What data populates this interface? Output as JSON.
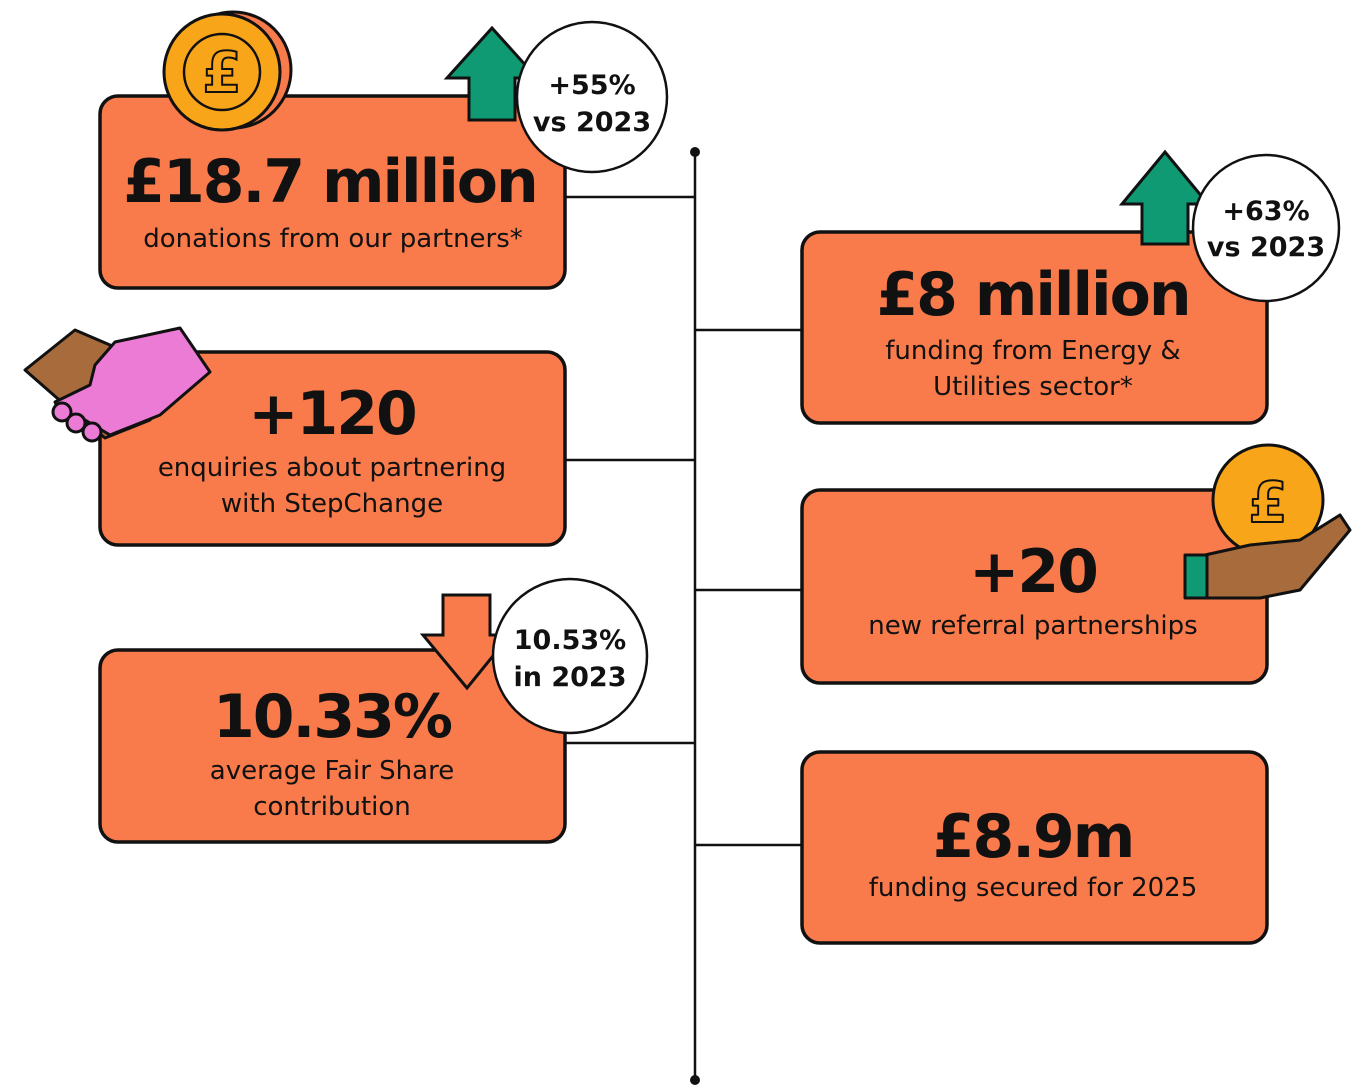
{
  "cards": [
    {
      "headline": "£18.7 million",
      "description": [
        "donations from our partners*"
      ],
      "badge": [
        "+55%",
        "vs 2023"
      ]
    },
    {
      "headline": "+120",
      "description": [
        "enquiries about partnering",
        "with StepChange"
      ]
    },
    {
      "headline": "10.33%",
      "description": [
        "average Fair Share",
        "contribution"
      ],
      "badge": [
        "10.53%",
        "in 2023"
      ]
    },
    {
      "headline": "£8 million",
      "description": [
        "funding from Energy &",
        "Utilities sector*"
      ],
      "badge": [
        "+63%",
        "vs 2023"
      ]
    },
    {
      "headline": "+20",
      "description": [
        "new referral partnerships"
      ]
    },
    {
      "headline": "£8.9m",
      "description": [
        "funding secured for 2025"
      ]
    }
  ]
}
